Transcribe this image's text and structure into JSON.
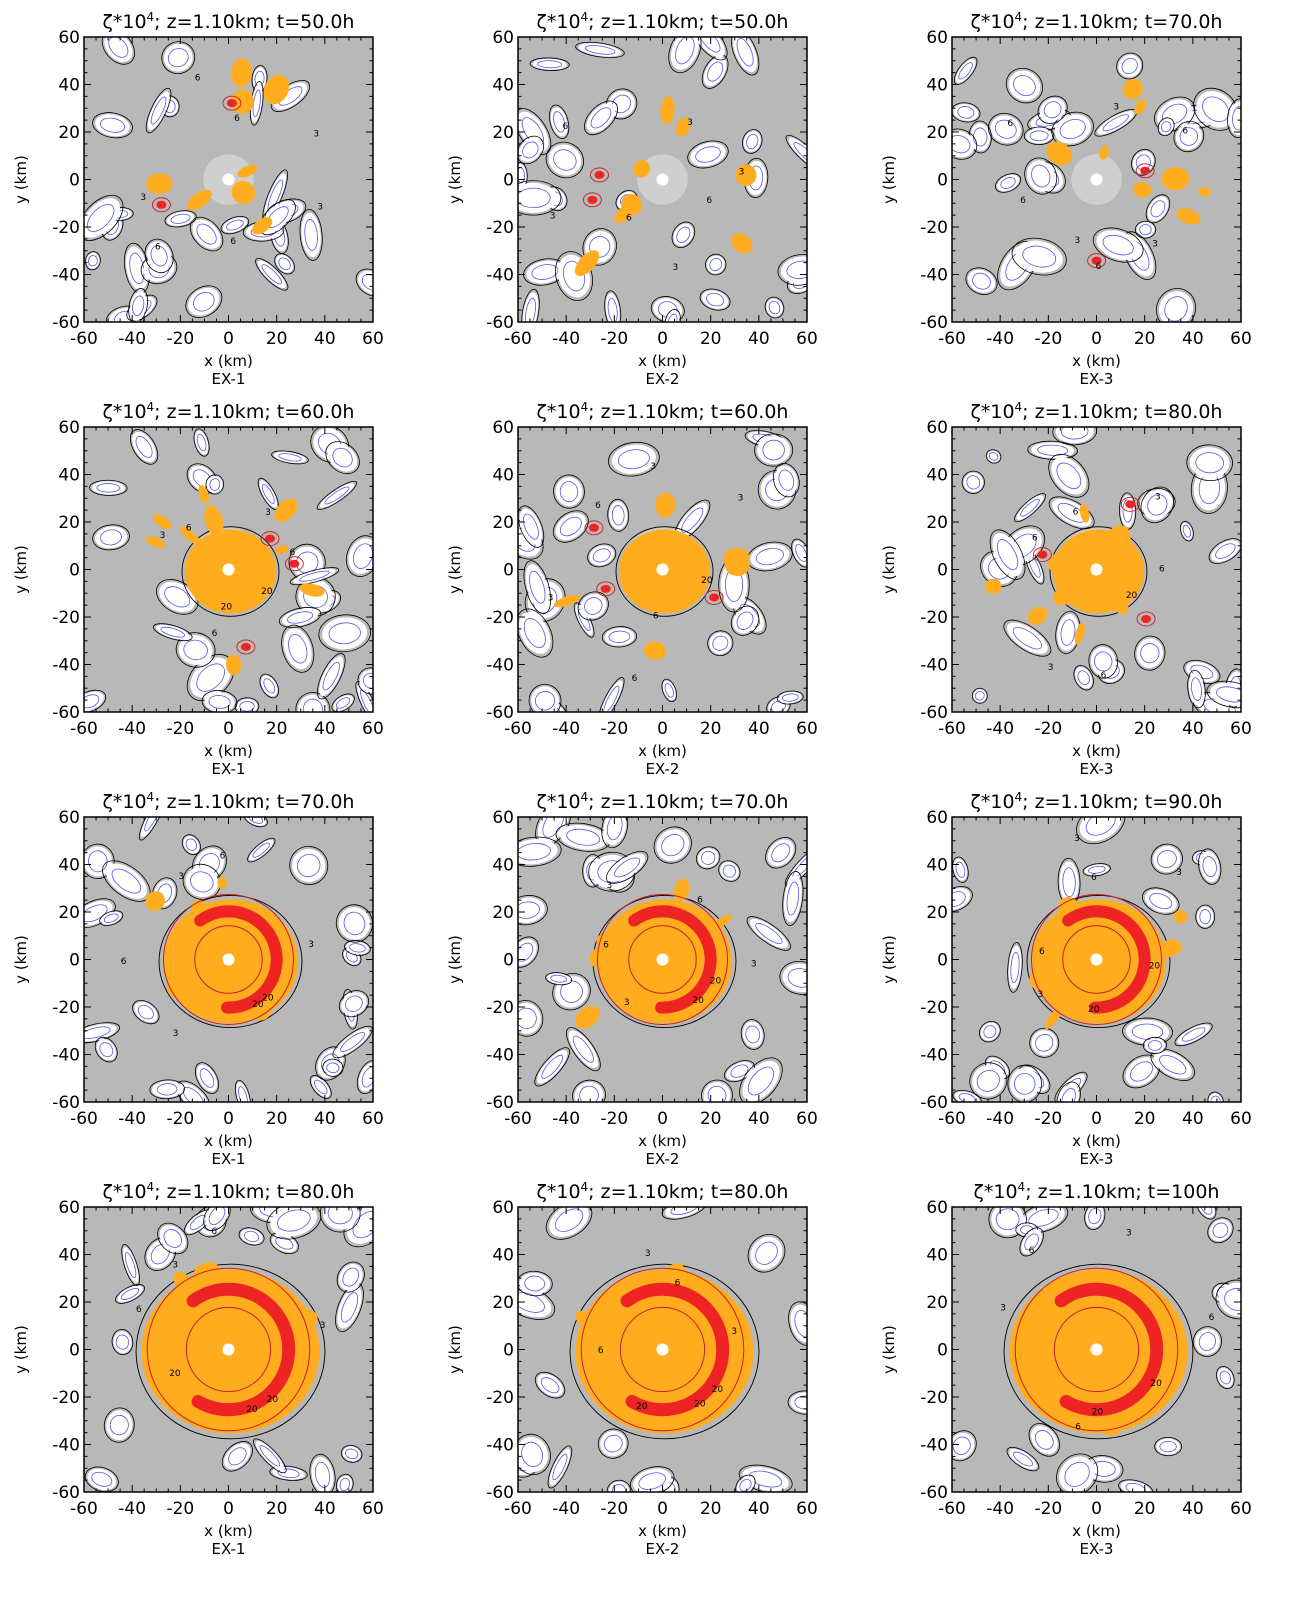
{
  "figure": {
    "var_base": "ζ*10",
    "var_exp": "4",
    "x_tick_labels": [
      "-60",
      "-40",
      "-20",
      "0",
      "20",
      "40",
      "60"
    ],
    "y_tick_labels": [
      "-60",
      "-40",
      "-20",
      "0",
      "20",
      "40",
      "60"
    ],
    "xlabel": "x (km)",
    "ylabel": "y (km)"
  },
  "colors": {
    "gray_shading": "#b8b8b8",
    "light_gray_shading": "#cfcfcf",
    "orange_shading": "#ffad1f",
    "red_shading": "#ee2424",
    "black_contour": "#000000",
    "blue_contour": "#5555ee",
    "red_contour": "#c81e1e",
    "center_marker": "#ffffff"
  },
  "chart_data": [
    {
      "type": "heatmap",
      "experiment": "EX-1",
      "title_rest": "; z=1.10km; t=50.0h",
      "z_km": 1.1,
      "t_h": 50.0,
      "xlim": [
        -60,
        60
      ],
      "ylim": [
        -60,
        60
      ],
      "stage": 0,
      "contour_labels": [
        "3",
        "6",
        "6",
        "3",
        "6",
        "6",
        "3"
      ]
    },
    {
      "type": "heatmap",
      "experiment": "EX-2",
      "title_rest": "; z=1.10km; t=50.0h",
      "z_km": 1.1,
      "t_h": 50.0,
      "xlim": [
        -60,
        60
      ],
      "ylim": [
        -60,
        60
      ],
      "stage": 0,
      "contour_labels": [
        "6",
        "3",
        "6",
        "3",
        "6",
        "3",
        "3"
      ]
    },
    {
      "type": "heatmap",
      "experiment": "EX-3",
      "title_rest": "; z=1.10km; t=70.0h",
      "z_km": 1.1,
      "t_h": 70.0,
      "xlim": [
        -60,
        60
      ],
      "ylim": [
        -60,
        60
      ],
      "stage": 0,
      "contour_labels": [
        "3",
        "6",
        "3",
        "6",
        "6",
        "3",
        "6"
      ]
    },
    {
      "type": "heatmap",
      "experiment": "EX-1",
      "title_rest": "; z=1.10km; t=60.0h",
      "z_km": 1.1,
      "t_h": 60.0,
      "xlim": [
        -60,
        60
      ],
      "ylim": [
        -60,
        60
      ],
      "stage": 1,
      "contour_labels": [
        "20",
        "20",
        "6",
        "3",
        "6",
        "3",
        "6"
      ]
    },
    {
      "type": "heatmap",
      "experiment": "EX-2",
      "title_rest": "; z=1.10km; t=60.0h",
      "z_km": 1.1,
      "t_h": 60.0,
      "xlim": [
        -60,
        60
      ],
      "ylim": [
        -60,
        60
      ],
      "stage": 1,
      "contour_labels": [
        "20",
        "6",
        "6",
        "3",
        "6",
        "3",
        "3"
      ]
    },
    {
      "type": "heatmap",
      "experiment": "EX-3",
      "title_rest": "; z=1.10km; t=80.0h",
      "z_km": 1.1,
      "t_h": 80.0,
      "xlim": [
        -60,
        60
      ],
      "ylim": [
        -60,
        60
      ],
      "stage": 1,
      "contour_labels": [
        "20",
        "6",
        "3",
        "6",
        "6",
        "3",
        "6"
      ]
    },
    {
      "type": "heatmap",
      "experiment": "EX-1",
      "title_rest": "; z=1.10km; t=70.0h",
      "z_km": 1.1,
      "t_h": 70.0,
      "xlim": [
        -60,
        60
      ],
      "ylim": [
        -60,
        60
      ],
      "stage": 2,
      "contour_labels": [
        "20",
        "20",
        "3",
        "6",
        "3",
        "6",
        "3"
      ]
    },
    {
      "type": "heatmap",
      "experiment": "EX-2",
      "title_rest": "; z=1.10km; t=70.0h",
      "z_km": 1.1,
      "t_h": 70.0,
      "xlim": [
        -60,
        60
      ],
      "ylim": [
        -60,
        60
      ],
      "stage": 2,
      "contour_labels": [
        "20",
        "20",
        "3",
        "6",
        "3",
        "6",
        "3"
      ]
    },
    {
      "type": "heatmap",
      "experiment": "EX-3",
      "title_rest": "; z=1.10km; t=90.0h",
      "z_km": 1.1,
      "t_h": 90.0,
      "xlim": [
        -60,
        60
      ],
      "ylim": [
        -60,
        60
      ],
      "stage": 2,
      "contour_labels": [
        "20",
        "20",
        "3",
        "6",
        "3",
        "6",
        "3"
      ]
    },
    {
      "type": "heatmap",
      "experiment": "EX-1",
      "title_rest": "; z=1.10km; t=80.0h",
      "z_km": 1.1,
      "t_h": 80.0,
      "xlim": [
        -60,
        60
      ],
      "ylim": [
        -60,
        60
      ],
      "stage": 3,
      "contour_labels": [
        "20",
        "20",
        "20",
        "6",
        "3",
        "6",
        "3"
      ]
    },
    {
      "type": "heatmap",
      "experiment": "EX-2",
      "title_rest": "; z=1.10km; t=80.0h",
      "z_km": 1.1,
      "t_h": 80.0,
      "xlim": [
        -60,
        60
      ],
      "ylim": [
        -60,
        60
      ],
      "stage": 3,
      "contour_labels": [
        "20",
        "20",
        "20",
        "6",
        "3",
        "6",
        "3"
      ]
    },
    {
      "type": "heatmap",
      "experiment": "EX-3",
      "title_rest": "; z=1.10km; t=100h",
      "z_km": 1.1,
      "t_h": 100,
      "xlim": [
        -60,
        60
      ],
      "ylim": [
        -60,
        60
      ],
      "stage": 3,
      "contour_labels": [
        "20",
        "20",
        "6",
        "3",
        "6",
        "3",
        "6"
      ]
    }
  ]
}
